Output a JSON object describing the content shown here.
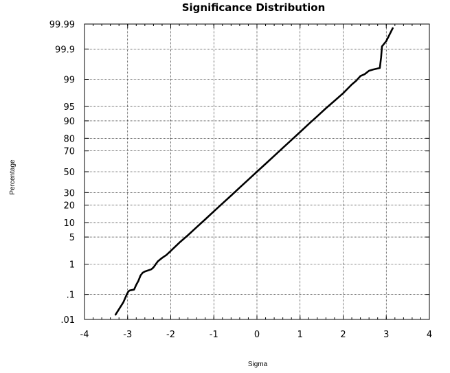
{
  "chart_data": {
    "type": "line",
    "title": "Significance Distribution",
    "xlabel": "Sigma",
    "ylabel": "Percentage",
    "xlim": [
      -4,
      4
    ],
    "ylim_percent": [
      0.01,
      99.99
    ],
    "y_scale": "normal-probability",
    "grid": true,
    "x_ticks": [
      -4,
      -3,
      -2,
      -1,
      0,
      1,
      2,
      3,
      4
    ],
    "y_ticks": [
      {
        "label": ".01",
        "value": 0.01
      },
      {
        "label": ".1",
        "value": 0.1
      },
      {
        "label": "1",
        "value": 1
      },
      {
        "label": "5",
        "value": 5
      },
      {
        "label": "10",
        "value": 10
      },
      {
        "label": "20",
        "value": 20
      },
      {
        "label": "30",
        "value": 30
      },
      {
        "label": "50",
        "value": 50
      },
      {
        "label": "70",
        "value": 70
      },
      {
        "label": "80",
        "value": 80
      },
      {
        "label": "90",
        "value": 90
      },
      {
        "label": "95",
        "value": 95
      },
      {
        "label": "99",
        "value": 99
      },
      {
        "label": "99.9",
        "value": 99.9
      },
      {
        "label": "99.99",
        "value": 99.99
      }
    ],
    "series": [
      {
        "color": "#000000",
        "x": [
          -3.28,
          -3.1,
          -3.02,
          -2.98,
          -2.95,
          -2.85,
          -2.8,
          -2.75,
          -2.7,
          -2.65,
          -2.6,
          -2.45,
          -2.4,
          -2.3,
          -2.2,
          -2.1,
          -2.0,
          -1.8,
          -1.6,
          -1.4,
          -1.2,
          -1.0,
          -0.8,
          -0.6,
          -0.4,
          -0.2,
          0.0,
          0.2,
          0.4,
          0.6,
          0.8,
          1.0,
          1.2,
          1.4,
          1.6,
          1.8,
          2.0,
          2.2,
          2.3,
          2.4,
          2.5,
          2.6,
          2.7,
          2.85,
          2.88,
          2.9,
          3.0,
          3.15
        ],
        "y": [
          0.016,
          0.05,
          0.1,
          0.13,
          0.14,
          0.15,
          0.22,
          0.3,
          0.45,
          0.55,
          0.6,
          0.7,
          0.8,
          1.2,
          1.5,
          1.8,
          2.3,
          3.7,
          5.5,
          8.1,
          11.5,
          15.9,
          21.2,
          27.4,
          34.5,
          42.1,
          50.0,
          57.9,
          65.5,
          72.6,
          78.8,
          84.1,
          88.5,
          91.9,
          94.5,
          96.3,
          97.6,
          98.6,
          98.9,
          99.2,
          99.3,
          99.45,
          99.5,
          99.55,
          99.8,
          99.92,
          99.95,
          99.985
        ]
      }
    ]
  }
}
